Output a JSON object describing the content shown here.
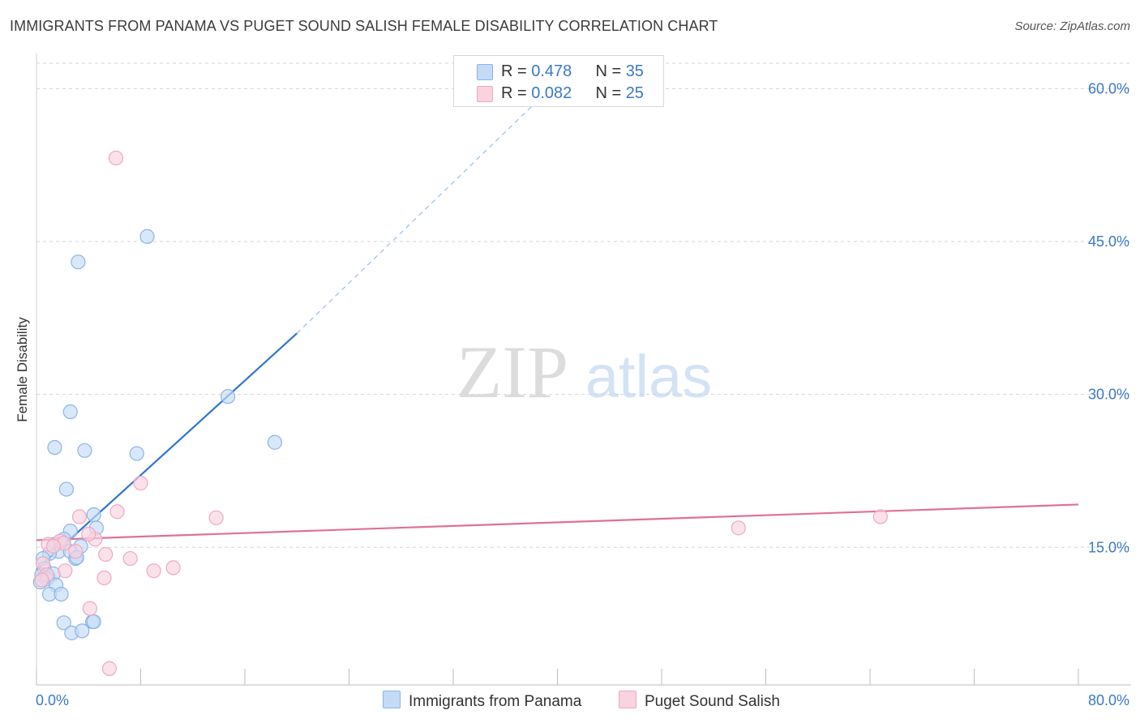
{
  "title": "IMMIGRANTS FROM PANAMA VS PUGET SOUND SALISH FEMALE DISABILITY CORRELATION CHART",
  "source": "Source: ZipAtlas.com",
  "watermark": {
    "zip": "ZIP",
    "atlas": "atlas"
  },
  "legend": {
    "rows": [
      {
        "r_label": "R = ",
        "r_value": "0.478",
        "n_label": "N = ",
        "n_value": "35"
      },
      {
        "r_label": "R = ",
        "r_value": "0.082",
        "n_label": "N = ",
        "n_value": "25"
      }
    ]
  },
  "colors": {
    "blue": "#8ab4e8",
    "blue_fill": "#c4dbf6",
    "blue_line": "#2f76d2",
    "pink": "#f0a8bf",
    "pink_fill": "#f9d3df",
    "pink_line": "#e0709a",
    "grid": "#d5d5d5",
    "axis_text": "#3a78c9"
  },
  "chart_data": {
    "type": "scatter",
    "title": "IMMIGRANTS FROM PANAMA VS PUGET SOUND SALISH FEMALE DISABILITY CORRELATION CHART",
    "xlabel": "",
    "ylabel": "Female Disability",
    "xlim": [
      0,
      80
    ],
    "ylim": [
      1.5,
      62.5
    ],
    "x_tick_labels": [
      "0.0%",
      "80.0%"
    ],
    "y_ticks": [
      15,
      30,
      45,
      60
    ],
    "y_tick_labels": [
      "15.0%",
      "30.0%",
      "45.0%",
      "60.0%"
    ],
    "grid": true,
    "series": [
      {
        "name": "Immigrants from Panama",
        "color": "blue",
        "R": 0.478,
        "N": 35,
        "points": [
          [
            8.5,
            45.5
          ],
          [
            3.2,
            43.0
          ],
          [
            2.6,
            28.3
          ],
          [
            14.7,
            29.8
          ],
          [
            18.3,
            25.3
          ],
          [
            1.4,
            24.8
          ],
          [
            3.7,
            24.5
          ],
          [
            7.7,
            24.2
          ],
          [
            2.3,
            20.7
          ],
          [
            4.4,
            18.2
          ],
          [
            2.6,
            16.6
          ],
          [
            4.6,
            16.9
          ],
          [
            2.1,
            15.8
          ],
          [
            1.4,
            15.3
          ],
          [
            3.4,
            15.1
          ],
          [
            1.7,
            14.6
          ],
          [
            2.6,
            14.6
          ],
          [
            1.0,
            14.4
          ],
          [
            3.0,
            13.9
          ],
          [
            3.1,
            14.0
          ],
          [
            0.5,
            13.9
          ],
          [
            0.6,
            12.9
          ],
          [
            0.4,
            12.3
          ],
          [
            0.9,
            12.1
          ],
          [
            1.3,
            12.4
          ],
          [
            0.8,
            11.9
          ],
          [
            0.3,
            11.6
          ],
          [
            1.5,
            11.3
          ],
          [
            1.0,
            10.4
          ],
          [
            1.9,
            10.4
          ],
          [
            2.1,
            7.6
          ],
          [
            4.3,
            7.7
          ],
          [
            4.4,
            7.7
          ],
          [
            2.7,
            6.6
          ],
          [
            3.5,
            6.8
          ]
        ]
      },
      {
        "name": "Puget Sound Salish",
        "color": "pink",
        "R": 0.082,
        "N": 25,
        "points": [
          [
            6.1,
            53.2
          ],
          [
            8.0,
            21.3
          ],
          [
            6.2,
            18.5
          ],
          [
            13.8,
            17.9
          ],
          [
            3.3,
            18.0
          ],
          [
            53.9,
            16.9
          ],
          [
            64.8,
            18.0
          ],
          [
            4.5,
            15.8
          ],
          [
            4.0,
            16.3
          ],
          [
            1.8,
            15.6
          ],
          [
            2.1,
            15.4
          ],
          [
            0.9,
            15.3
          ],
          [
            3.0,
            14.6
          ],
          [
            5.3,
            14.3
          ],
          [
            7.2,
            13.9
          ],
          [
            0.5,
            13.4
          ],
          [
            10.5,
            13.0
          ],
          [
            9.0,
            12.7
          ],
          [
            2.2,
            12.7
          ],
          [
            0.8,
            12.3
          ],
          [
            5.2,
            12.0
          ],
          [
            0.4,
            11.8
          ],
          [
            4.1,
            9.0
          ],
          [
            5.6,
            3.1
          ],
          [
            1.3,
            15.1
          ]
        ]
      }
    ],
    "trend_lines": [
      {
        "series": "Immigrants from Panama",
        "from": [
          0,
          12.8
        ],
        "to": [
          20,
          36.0
        ],
        "dashed_to": [
          40,
          60.7
        ]
      },
      {
        "series": "Puget Sound Salish",
        "from": [
          0,
          15.7
        ],
        "to": [
          80,
          19.2
        ]
      }
    ]
  },
  "bottom_legend": [
    {
      "label": "Immigrants from Panama"
    },
    {
      "label": "Puget Sound Salish"
    }
  ]
}
